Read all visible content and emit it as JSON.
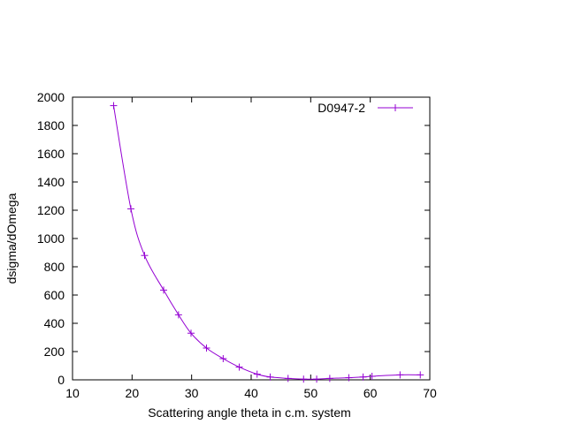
{
  "chart_data": {
    "type": "line",
    "xlabel": "Scattering angle theta in c.m. system",
    "ylabel": "dsigma/dOmega",
    "xlim": [
      10,
      70
    ],
    "ylim": [
      0,
      2000
    ],
    "xticks": [
      10,
      20,
      30,
      40,
      50,
      60,
      70
    ],
    "yticks": [
      0,
      200,
      400,
      600,
      800,
      1000,
      1200,
      1400,
      1600,
      1800,
      2000
    ],
    "grid": false,
    "legend_position": "top-right",
    "series": [
      {
        "name": "D0947-2",
        "color": "#9400d3",
        "marker": "plus",
        "x": [
          16.9,
          19.8,
          22.1,
          25.3,
          27.8,
          29.9,
          32.5,
          35.3,
          38.0,
          41.0,
          43.2,
          46.2,
          48.8,
          51.0,
          53.2,
          56.4,
          58.8,
          60.3,
          65.0,
          68.4
        ],
        "y": [
          1940,
          1210,
          880,
          635,
          460,
          330,
          225,
          150,
          90,
          40,
          20,
          10,
          5,
          5,
          10,
          15,
          20,
          25,
          35,
          35
        ]
      }
    ]
  }
}
